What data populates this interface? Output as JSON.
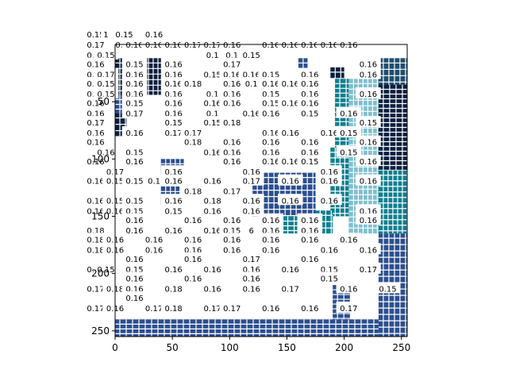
{
  "chart_data": {
    "type": "heatmap",
    "title": "",
    "xlabel": "",
    "ylabel": "",
    "xlim": [
      0,
      255
    ],
    "ylim": [
      255,
      0
    ],
    "x_ticks": [
      0,
      50,
      100,
      150,
      200,
      250
    ],
    "y_ticks": [
      50,
      100,
      150,
      200,
      250
    ],
    "x_tick_labels": [
      "0",
      "50",
      "100",
      "150",
      "200",
      "250"
    ],
    "y_tick_labels": [
      "50",
      "100",
      "150",
      "200",
      "250"
    ],
    "colormap": [
      "#ffffff",
      "#7fbfd0",
      "#0f7f8f",
      "#2c4f8f",
      "#0b1f3f"
    ],
    "grid": false,
    "annotation_format": "0.00",
    "annotation_columns": [
      -17,
      -8,
      8,
      17,
      34,
      51,
      68,
      85,
      102,
      119,
      136,
      153,
      170,
      187,
      204,
      221
    ],
    "annotation_rows": [
      -9,
      0,
      9,
      17,
      26,
      34,
      43,
      51,
      60,
      68,
      77,
      85,
      94,
      102,
      111,
      119,
      128,
      136,
      145,
      153,
      162,
      170,
      179,
      187,
      196,
      204,
      213,
      221,
      230,
      238
    ],
    "annotations": [
      {
        "x": -17,
        "y": -9,
        "text": "0.15"
      },
      {
        "x": -8,
        "y": -9,
        "text": "1"
      },
      {
        "x": 8,
        "y": -9,
        "text": "0.15"
      },
      {
        "x": 34,
        "y": -9,
        "text": "0.16"
      },
      {
        "x": -17,
        "y": 0,
        "text": "0.17"
      },
      {
        "x": 8,
        "y": 0,
        "text": "0.17"
      },
      {
        "x": 17,
        "y": 0,
        "text": "0.16"
      },
      {
        "x": 34,
        "y": 0,
        "text": "0.16"
      },
      {
        "x": 51,
        "y": 0,
        "text": "0.16"
      },
      {
        "x": 68,
        "y": 0,
        "text": "0.17"
      },
      {
        "x": 85,
        "y": 0,
        "text": "0.17"
      },
      {
        "x": 102,
        "y": 0,
        "text": "0.16"
      },
      {
        "x": 136,
        "y": 0,
        "text": "0.16"
      },
      {
        "x": 153,
        "y": 0,
        "text": "0.16"
      },
      {
        "x": 170,
        "y": 0,
        "text": "0.16"
      },
      {
        "x": 187,
        "y": 0,
        "text": "0.16"
      },
      {
        "x": 204,
        "y": 0,
        "text": "0.16"
      },
      {
        "x": -17,
        "y": 9,
        "text": "0.17"
      },
      {
        "x": -8,
        "y": 9,
        "text": "0.15"
      },
      {
        "x": 85,
        "y": 9,
        "text": "0.1"
      },
      {
        "x": 102,
        "y": 9,
        "text": "0.1"
      },
      {
        "x": 119,
        "y": 9,
        "text": "0.15"
      },
      {
        "x": 221,
        "y": 17,
        "text": "0.16"
      },
      {
        "x": -17,
        "y": 17,
        "text": "0.16"
      },
      {
        "x": 17,
        "y": 17,
        "text": "0.15"
      },
      {
        "x": 51,
        "y": 17,
        "text": "0.16"
      },
      {
        "x": 102,
        "y": 17,
        "text": "0.17"
      },
      {
        "x": -17,
        "y": 26,
        "text": "0.17"
      },
      {
        "x": -8,
        "y": 26,
        "text": "0.17"
      },
      {
        "x": 17,
        "y": 26,
        "text": "0.16"
      },
      {
        "x": 51,
        "y": 26,
        "text": "0.16"
      },
      {
        "x": 85,
        "y": 26,
        "text": "0.15"
      },
      {
        "x": 102,
        "y": 26,
        "text": "0.16"
      },
      {
        "x": 119,
        "y": 26,
        "text": "0.16"
      },
      {
        "x": 136,
        "y": 26,
        "text": "0.15"
      },
      {
        "x": 170,
        "y": 26,
        "text": "0.16"
      },
      {
        "x": 221,
        "y": 26,
        "text": "0.16"
      },
      {
        "x": -17,
        "y": 34,
        "text": "0.16"
      },
      {
        "x": -8,
        "y": 34,
        "text": "0.15"
      },
      {
        "x": 17,
        "y": 34,
        "text": "0.16"
      },
      {
        "x": 51,
        "y": 34,
        "text": "0.16"
      },
      {
        "x": 68,
        "y": 34,
        "text": "0.18"
      },
      {
        "x": 102,
        "y": 34,
        "text": "0.16"
      },
      {
        "x": 119,
        "y": 34,
        "text": "0.1"
      },
      {
        "x": 136,
        "y": 34,
        "text": "0.16"
      },
      {
        "x": 153,
        "y": 34,
        "text": "0.16"
      },
      {
        "x": 170,
        "y": 34,
        "text": "0.16"
      },
      {
        "x": -17,
        "y": 43,
        "text": "0.17"
      },
      {
        "x": -8,
        "y": 43,
        "text": "0.15"
      },
      {
        "x": 17,
        "y": 43,
        "text": "0.16"
      },
      {
        "x": 51,
        "y": 43,
        "text": "0.16"
      },
      {
        "x": 85,
        "y": 43,
        "text": "0.1"
      },
      {
        "x": 102,
        "y": 43,
        "text": "0.16"
      },
      {
        "x": 136,
        "y": 43,
        "text": "0.15"
      },
      {
        "x": 170,
        "y": 43,
        "text": "0.16"
      },
      {
        "x": 221,
        "y": 43,
        "text": "0.16"
      },
      {
        "x": -17,
        "y": 51,
        "text": "0.16"
      },
      {
        "x": 17,
        "y": 51,
        "text": "0.15"
      },
      {
        "x": 51,
        "y": 51,
        "text": "0.16"
      },
      {
        "x": 85,
        "y": 51,
        "text": "0.16"
      },
      {
        "x": 102,
        "y": 51,
        "text": "0.16"
      },
      {
        "x": 136,
        "y": 51,
        "text": "0.15"
      },
      {
        "x": 153,
        "y": 51,
        "text": "0.16"
      },
      {
        "x": 170,
        "y": 51,
        "text": "0.16"
      },
      {
        "x": -17,
        "y": 60,
        "text": "0.16"
      },
      {
        "x": 17,
        "y": 60,
        "text": "0.17"
      },
      {
        "x": 51,
        "y": 60,
        "text": "0.16"
      },
      {
        "x": 85,
        "y": 60,
        "text": "0.1"
      },
      {
        "x": 119,
        "y": 60,
        "text": "0.16"
      },
      {
        "x": 136,
        "y": 60,
        "text": "0.16"
      },
      {
        "x": 170,
        "y": 60,
        "text": "0.15"
      },
      {
        "x": 204,
        "y": 60,
        "text": "0.16"
      },
      {
        "x": -17,
        "y": 68,
        "text": "0.17"
      },
      {
        "x": 51,
        "y": 68,
        "text": "0.15"
      },
      {
        "x": 85,
        "y": 68,
        "text": "0.15"
      },
      {
        "x": 102,
        "y": 68,
        "text": "0.18"
      },
      {
        "x": 221,
        "y": 68,
        "text": "0.15"
      },
      {
        "x": -17,
        "y": 77,
        "text": "0.16"
      },
      {
        "x": 17,
        "y": 77,
        "text": "0.16"
      },
      {
        "x": 51,
        "y": 77,
        "text": "0.17"
      },
      {
        "x": 68,
        "y": 77,
        "text": "0.17"
      },
      {
        "x": 136,
        "y": 77,
        "text": "0.16"
      },
      {
        "x": 153,
        "y": 77,
        "text": "0.16"
      },
      {
        "x": 187,
        "y": 77,
        "text": "0.16"
      },
      {
        "x": 204,
        "y": 77,
        "text": "0.15"
      },
      {
        "x": -17,
        "y": 85,
        "text": "0.16"
      },
      {
        "x": 68,
        "y": 85,
        "text": "0.18"
      },
      {
        "x": 102,
        "y": 85,
        "text": "0.16"
      },
      {
        "x": 136,
        "y": 85,
        "text": "0.16"
      },
      {
        "x": 170,
        "y": 85,
        "text": "0.16"
      },
      {
        "x": 221,
        "y": 85,
        "text": "0.16"
      },
      {
        "x": -8,
        "y": 94,
        "text": "0.16"
      },
      {
        "x": 17,
        "y": 94,
        "text": "0.15"
      },
      {
        "x": 85,
        "y": 94,
        "text": "0.16"
      },
      {
        "x": 102,
        "y": 94,
        "text": "0.16"
      },
      {
        "x": 136,
        "y": 94,
        "text": "0.16"
      },
      {
        "x": 170,
        "y": 94,
        "text": "0.16"
      },
      {
        "x": 204,
        "y": 94,
        "text": "0.15"
      },
      {
        "x": -17,
        "y": 102,
        "text": "0.16"
      },
      {
        "x": 17,
        "y": 102,
        "text": "0.16"
      },
      {
        "x": 102,
        "y": 102,
        "text": "0.16"
      },
      {
        "x": 136,
        "y": 102,
        "text": "0.16"
      },
      {
        "x": 153,
        "y": 102,
        "text": "0.16"
      },
      {
        "x": 170,
        "y": 102,
        "text": "0.15"
      },
      {
        "x": 221,
        "y": 102,
        "text": "0.16"
      },
      {
        "x": 0,
        "y": 111,
        "text": "0.17"
      },
      {
        "x": 51,
        "y": 111,
        "text": "0.16"
      },
      {
        "x": 119,
        "y": 111,
        "text": "0.16"
      },
      {
        "x": 187,
        "y": 111,
        "text": "0.16"
      },
      {
        "x": -17,
        "y": 119,
        "text": "0.16"
      },
      {
        "x": 0,
        "y": 119,
        "text": "0.15"
      },
      {
        "x": 17,
        "y": 119,
        "text": "0.15"
      },
      {
        "x": 34,
        "y": 119,
        "text": "0.1"
      },
      {
        "x": 51,
        "y": 119,
        "text": "0.16"
      },
      {
        "x": 85,
        "y": 119,
        "text": "0.16"
      },
      {
        "x": 119,
        "y": 119,
        "text": "0.17"
      },
      {
        "x": 153,
        "y": 119,
        "text": "0.16"
      },
      {
        "x": 187,
        "y": 119,
        "text": "0.16"
      },
      {
        "x": 221,
        "y": 119,
        "text": "0.16"
      },
      {
        "x": 68,
        "y": 128,
        "text": "0.18"
      },
      {
        "x": 102,
        "y": 128,
        "text": "0.17"
      },
      {
        "x": -17,
        "y": 136,
        "text": "0.16"
      },
      {
        "x": 0,
        "y": 136,
        "text": "0.15"
      },
      {
        "x": 17,
        "y": 136,
        "text": "0.15"
      },
      {
        "x": 51,
        "y": 136,
        "text": "0.16"
      },
      {
        "x": 85,
        "y": 136,
        "text": "0.18"
      },
      {
        "x": 119,
        "y": 136,
        "text": "0.16"
      },
      {
        "x": 153,
        "y": 136,
        "text": "0.16"
      },
      {
        "x": 187,
        "y": 136,
        "text": "0.16"
      },
      {
        "x": -17,
        "y": 145,
        "text": "0.16"
      },
      {
        "x": 0,
        "y": 145,
        "text": "0.16"
      },
      {
        "x": 17,
        "y": 145,
        "text": "0.15"
      },
      {
        "x": 51,
        "y": 145,
        "text": "0.15"
      },
      {
        "x": 85,
        "y": 145,
        "text": "0.16"
      },
      {
        "x": 119,
        "y": 145,
        "text": "0.16"
      },
      {
        "x": 221,
        "y": 145,
        "text": "0.16"
      },
      {
        "x": 17,
        "y": 153,
        "text": "0.16"
      },
      {
        "x": 68,
        "y": 153,
        "text": "0.16"
      },
      {
        "x": 102,
        "y": 153,
        "text": "0.16"
      },
      {
        "x": 136,
        "y": 153,
        "text": "0.16"
      },
      {
        "x": 170,
        "y": 153,
        "text": "0.16"
      },
      {
        "x": 221,
        "y": 153,
        "text": "0.16"
      },
      {
        "x": -17,
        "y": 162,
        "text": "0.18"
      },
      {
        "x": 17,
        "y": 162,
        "text": "0.16"
      },
      {
        "x": 51,
        "y": 162,
        "text": "0.16"
      },
      {
        "x": 85,
        "y": 162,
        "text": "0.16"
      },
      {
        "x": 102,
        "y": 162,
        "text": "0.15"
      },
      {
        "x": 119,
        "y": 162,
        "text": "6"
      },
      {
        "x": 136,
        "y": 162,
        "text": "0.16"
      },
      {
        "x": 170,
        "y": 162,
        "text": "0.16"
      },
      {
        "x": -17,
        "y": 170,
        "text": "0.18"
      },
      {
        "x": 0,
        "y": 170,
        "text": "0.16"
      },
      {
        "x": 34,
        "y": 170,
        "text": "0.16"
      },
      {
        "x": 68,
        "y": 170,
        "text": "0.16"
      },
      {
        "x": 102,
        "y": 170,
        "text": "0.16"
      },
      {
        "x": 136,
        "y": 170,
        "text": "0.16"
      },
      {
        "x": 170,
        "y": 170,
        "text": "0.16"
      },
      {
        "x": 204,
        "y": 170,
        "text": "0.16"
      },
      {
        "x": -17,
        "y": 179,
        "text": "0.18"
      },
      {
        "x": 0,
        "y": 179,
        "text": "0.16"
      },
      {
        "x": 34,
        "y": 179,
        "text": "0.16"
      },
      {
        "x": 68,
        "y": 179,
        "text": "0.16"
      },
      {
        "x": 102,
        "y": 179,
        "text": "0.16"
      },
      {
        "x": 136,
        "y": 179,
        "text": "0.16"
      },
      {
        "x": 187,
        "y": 179,
        "text": "0.16"
      },
      {
        "x": 221,
        "y": 179,
        "text": "0.16"
      },
      {
        "x": 17,
        "y": 187,
        "text": "0.16"
      },
      {
        "x": 68,
        "y": 187,
        "text": "0.16"
      },
      {
        "x": 119,
        "y": 187,
        "text": "0.17"
      },
      {
        "x": 170,
        "y": 187,
        "text": "0.16"
      },
      {
        "x": -17,
        "y": 196,
        "text": "0.17"
      },
      {
        "x": -8,
        "y": 196,
        "text": "0.15"
      },
      {
        "x": 17,
        "y": 196,
        "text": "0.15"
      },
      {
        "x": 51,
        "y": 196,
        "text": "0.16"
      },
      {
        "x": 85,
        "y": 196,
        "text": "0.16"
      },
      {
        "x": 119,
        "y": 196,
        "text": "0.16"
      },
      {
        "x": 153,
        "y": 196,
        "text": "0.16"
      },
      {
        "x": 187,
        "y": 196,
        "text": "0.15"
      },
      {
        "x": 221,
        "y": 196,
        "text": "0.17"
      },
      {
        "x": 17,
        "y": 204,
        "text": "0.16"
      },
      {
        "x": 68,
        "y": 204,
        "text": "0.16"
      },
      {
        "x": 119,
        "y": 204,
        "text": "0.16"
      },
      {
        "x": 187,
        "y": 204,
        "text": "0.15"
      },
      {
        "x": -17,
        "y": 213,
        "text": "0.17"
      },
      {
        "x": 0,
        "y": 213,
        "text": "0.18"
      },
      {
        "x": 17,
        "y": 213,
        "text": "0.16"
      },
      {
        "x": 51,
        "y": 213,
        "text": "0.18"
      },
      {
        "x": 85,
        "y": 213,
        "text": "0.16"
      },
      {
        "x": 119,
        "y": 213,
        "text": "0.16"
      },
      {
        "x": 153,
        "y": 213,
        "text": "0.17"
      },
      {
        "x": 204,
        "y": 213,
        "text": "0.16"
      },
      {
        "x": 238,
        "y": 213,
        "text": "0.15"
      },
      {
        "x": 17,
        "y": 221,
        "text": "0.16"
      },
      {
        "x": -17,
        "y": 230,
        "text": "0.17"
      },
      {
        "x": 0,
        "y": 230,
        "text": "0.16"
      },
      {
        "x": 34,
        "y": 230,
        "text": "0.17"
      },
      {
        "x": 51,
        "y": 230,
        "text": "0.18"
      },
      {
        "x": 85,
        "y": 230,
        "text": "0.17"
      },
      {
        "x": 102,
        "y": 230,
        "text": "0.17"
      },
      {
        "x": 136,
        "y": 230,
        "text": "0.16"
      },
      {
        "x": 170,
        "y": 230,
        "text": "0.16"
      },
      {
        "x": 204,
        "y": 230,
        "text": "0.17"
      }
    ],
    "blocks": [
      {
        "x0": 0,
        "x1": 60,
        "y0": 12,
        "y1": 44,
        "color": "#0b1f3f"
      },
      {
        "x0": 0,
        "x1": 10,
        "y0": 60,
        "y1": 80,
        "color": "#0b1f3f"
      },
      {
        "x0": 0,
        "x1": 14,
        "y0": 44,
        "y1": 60,
        "color": "#2c4f8f"
      },
      {
        "x0": 160,
        "x1": 168,
        "y0": 12,
        "y1": 30,
        "color": "#2c4f8f"
      },
      {
        "x0": 188,
        "x1": 200,
        "y0": 20,
        "y1": 30,
        "color": "#0b1f3f"
      },
      {
        "x0": 192,
        "x1": 204,
        "y0": 30,
        "y1": 90,
        "color": "#0f7f8f"
      },
      {
        "x0": 188,
        "x1": 204,
        "y0": 90,
        "y1": 150,
        "color": "#0f7f8f"
      },
      {
        "x0": 170,
        "x1": 190,
        "y0": 145,
        "y1": 165,
        "color": "#0f7f8f"
      },
      {
        "x0": 130,
        "x1": 170,
        "y0": 150,
        "y1": 165,
        "color": "#0f7f8f"
      },
      {
        "x0": 204,
        "x1": 230,
        "y0": 30,
        "y1": 165,
        "color": "#7fbfd0"
      },
      {
        "x0": 230,
        "x1": 255,
        "y0": 12,
        "y1": 35,
        "color": "#1d4f6f"
      },
      {
        "x0": 230,
        "x1": 255,
        "y0": 35,
        "y1": 110,
        "color": "#0b1f3f"
      },
      {
        "x0": 230,
        "x1": 255,
        "y0": 110,
        "y1": 165,
        "color": "#0f7f8f"
      },
      {
        "x0": 230,
        "x1": 255,
        "y0": 165,
        "y1": 255,
        "color": "#2c4f8f"
      },
      {
        "x0": 0,
        "x1": 230,
        "y0": 240,
        "y1": 255,
        "color": "#2c4f8f"
      },
      {
        "x0": 40,
        "x1": 60,
        "y0": 100,
        "y1": 140,
        "color": "#2c4f8f"
      },
      {
        "x0": 120,
        "x1": 175,
        "y0": 112,
        "y1": 150,
        "color": "#2c4f8f"
      },
      {
        "x0": 190,
        "x1": 205,
        "y0": 210,
        "y1": 240,
        "color": "#2c4f8f"
      }
    ]
  }
}
